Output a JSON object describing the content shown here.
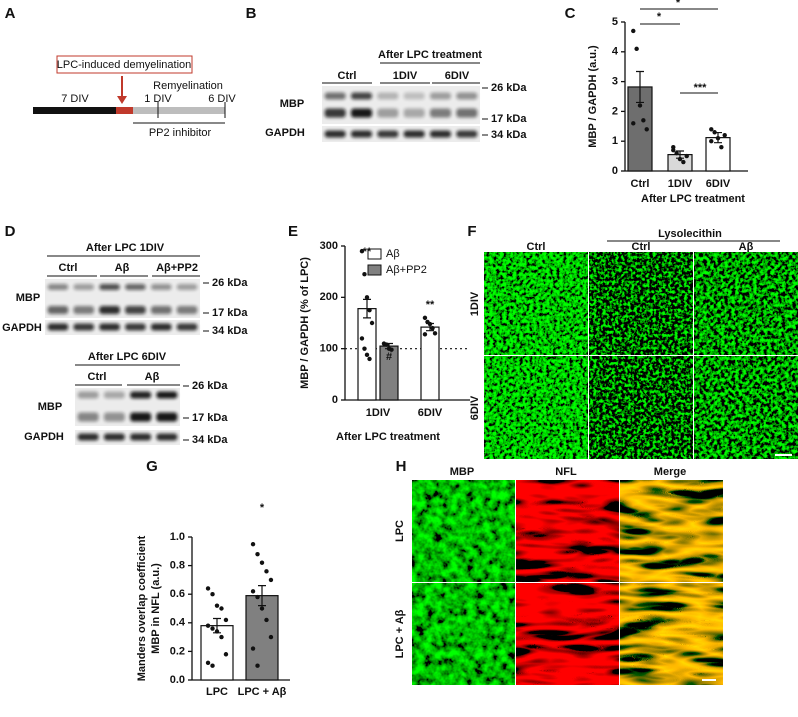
{
  "panels": {
    "A": {
      "label": "A",
      "box": "LPC-induced demyelination",
      "phase1": "7 DIV",
      "phase2": "Remyelination",
      "tick1": "1 DIV",
      "tick2": "6 DIV",
      "treatment": "PP2 inhibitor"
    },
    "B": {
      "label": "B",
      "group": "After LPC treatment",
      "lanes": [
        "Ctrl",
        "1DIV",
        "6DIV"
      ],
      "rows": [
        "MBP",
        "GAPDH"
      ],
      "markers": [
        "26 kDa",
        "17 kDa",
        "34 kDa"
      ]
    },
    "D": {
      "label": "D",
      "blots": [
        {
          "title": "After LPC 1DIV",
          "lanes": [
            "Ctrl",
            "Aβ",
            "Aβ+PP2"
          ],
          "rows": [
            "MBP",
            "GAPDH"
          ],
          "markers": [
            "26 kDa",
            "17 kDa",
            "34 kDa"
          ]
        },
        {
          "title": "After LPC 6DIV",
          "lanes": [
            "Ctrl",
            "Aβ"
          ],
          "rows": [
            "MBP",
            "GAPDH"
          ],
          "markers": [
            "26 kDa",
            "17 kDa",
            "34 kDa"
          ]
        }
      ]
    },
    "F": {
      "label": "F",
      "group": "Lysolecithin",
      "columns": [
        "Ctrl",
        "Ctrl",
        "Aβ"
      ],
      "rows": [
        "1DIV",
        "6DIV"
      ]
    },
    "H": {
      "label": "H",
      "columns": [
        "MBP",
        "NFL",
        "Merge"
      ],
      "rows": [
        "LPC",
        "LPC + Aβ"
      ]
    }
  },
  "chart_data": [
    {
      "type": "bar",
      "panel_label": "C",
      "ylabel": "MBP / GAPDH (a.u.)",
      "xlabel": "After LPC treatment",
      "categories": [
        "Ctrl",
        "1DIV",
        "6DIV"
      ],
      "values": [
        2.82,
        0.55,
        1.12
      ],
      "errors": [
        0.52,
        0.12,
        0.17
      ],
      "colors": [
        "#6e6e6e",
        "#d9d9d9",
        "#ffffff"
      ],
      "points": [
        [
          4.7,
          4.1,
          2.2,
          1.7,
          1.4,
          1.6
        ],
        [
          0.8,
          0.6,
          0.4,
          0.3,
          0.5,
          0.7
        ],
        [
          1.4,
          1.3,
          1.1,
          0.8,
          1.2,
          1.0
        ]
      ],
      "ylim": [
        0,
        5
      ],
      "yticks": [
        0,
        1,
        2,
        3,
        4,
        5
      ],
      "annotations": [
        "*",
        "*",
        "***"
      ]
    },
    {
      "type": "grouped-bar",
      "panel_label": "E",
      "ylabel": "MBP / GAPDH (% of LPC)",
      "xlabel": "After LPC treatment",
      "categories": [
        "1DIV",
        "6DIV"
      ],
      "series": [
        {
          "name": "Aβ",
          "color": "#ffffff",
          "values": [
            178,
            142
          ],
          "errors": [
            18,
            7
          ],
          "points": [
            [
              290,
              245,
              200,
              175,
              150,
              120,
              100,
              88,
              80
            ],
            [
              160,
              152,
              148,
              140,
              130,
              128
            ]
          ]
        },
        {
          "name": "Aβ+PP2",
          "color": "#808080",
          "values": [
            105,
            null
          ],
          "errors": [
            5,
            null
          ],
          "points": [
            [
              110,
              108,
              100,
              98
            ],
            null
          ]
        }
      ],
      "ylim": [
        0,
        300
      ],
      "yticks": [
        0,
        100,
        200,
        300
      ],
      "reference_line": 100,
      "annotations": [
        "**",
        "#",
        "**"
      ]
    },
    {
      "type": "bar",
      "panel_label": "G",
      "ylabel": [
        "Manders overlap coefficient",
        "MBP in NFL (a.u.)"
      ],
      "categories": [
        "LPC",
        "LPC + Aβ"
      ],
      "values": [
        0.38,
        0.59
      ],
      "errors": [
        0.05,
        0.07
      ],
      "colors": [
        "#ffffff",
        "#808080"
      ],
      "points": [
        [
          0.64,
          0.6,
          0.52,
          0.5,
          0.42,
          0.38,
          0.36,
          0.34,
          0.3,
          0.18,
          0.12,
          0.1
        ],
        [
          0.95,
          0.88,
          0.82,
          0.76,
          0.7,
          0.62,
          0.58,
          0.5,
          0.42,
          0.3,
          0.22,
          0.1
        ]
      ],
      "ylim": [
        0,
        1
      ],
      "yticks": [
        {
          "value": 0,
          "label": "0.0"
        },
        0.2,
        0.4,
        0.6,
        0.8,
        {
          "value": 1,
          "label": "1.0"
        }
      ],
      "annotations": [
        "*"
      ]
    }
  ]
}
